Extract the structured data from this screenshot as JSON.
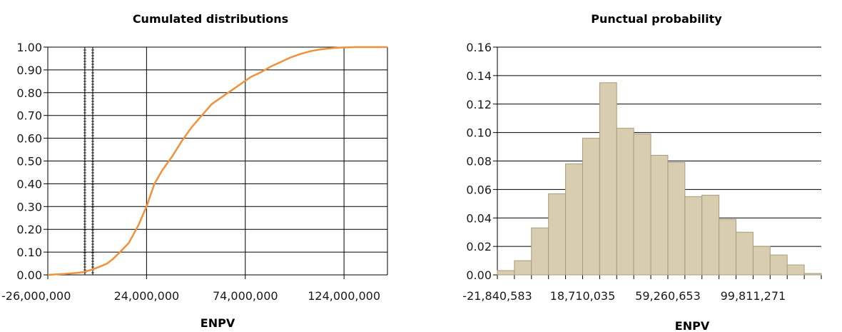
{
  "chart_data": [
    {
      "type": "line",
      "title": "Cumulated distributions",
      "xlabel": "ENPV",
      "ylabel": "",
      "xlim": [
        -26000000,
        146000000
      ],
      "ylim": [
        0,
        1
      ],
      "xticks": [
        -26000000,
        24000000,
        74000000,
        124000000
      ],
      "xtick_labels": [
        "-26,000,000",
        "24,000,000",
        "74,000,000",
        "124,000,000"
      ],
      "yticks": [
        0,
        0.1,
        0.2,
        0.3,
        0.4,
        0.5,
        0.6,
        0.7,
        0.8,
        0.9,
        1.0
      ],
      "ytick_labels": [
        "0.00",
        "0.10",
        "0.20",
        "0.30",
        "0.40",
        "0.50",
        "0.60",
        "0.70",
        "0.80",
        "0.90",
        "1.00"
      ],
      "grid": true,
      "color": "#f0913a",
      "series": [
        {
          "x": [
            -26000000,
            -16000000,
            -8000000,
            -3000000,
            0,
            4000000,
            7000000,
            10000000,
            15000000,
            20000000,
            24000000,
            28000000,
            32000000,
            37000000,
            42000000,
            47000000,
            52000000,
            57000000,
            62000000,
            67000000,
            72000000,
            77000000,
            82000000,
            87000000,
            92000000,
            97000000,
            102000000,
            107000000,
            112000000,
            117000000,
            122000000,
            130000000,
            138000000,
            146000000
          ],
          "y": [
            0.0,
            0.005,
            0.012,
            0.025,
            0.035,
            0.05,
            0.07,
            0.095,
            0.14,
            0.22,
            0.3,
            0.4,
            0.46,
            0.52,
            0.59,
            0.65,
            0.7,
            0.75,
            0.78,
            0.81,
            0.84,
            0.87,
            0.89,
            0.915,
            0.935,
            0.955,
            0.97,
            0.982,
            0.99,
            0.995,
            0.998,
            1.0,
            1.0,
            1.0
          ]
        }
      ]
    },
    {
      "type": "bar",
      "title": "Punctual probability",
      "xlabel": "ENPV",
      "ylabel": "",
      "ylim": [
        0,
        0.16
      ],
      "yticks": [
        0,
        0.02,
        0.04,
        0.06,
        0.08,
        0.1,
        0.12,
        0.14,
        0.16
      ],
      "ytick_labels": [
        "0.00",
        "0.02",
        "0.04",
        "0.06",
        "0.08",
        "0.10",
        "0.12",
        "0.14",
        "0.16"
      ],
      "xtick_labels": [
        "-21,840,583",
        "18,710,035",
        "59,260,653",
        "99,811,271"
      ],
      "grid": true,
      "color": "#d8ceaf",
      "values": [
        0.003,
        0.01,
        0.033,
        0.057,
        0.078,
        0.096,
        0.135,
        0.103,
        0.099,
        0.084,
        0.079,
        0.055,
        0.056,
        0.039,
        0.03,
        0.02,
        0.014,
        0.007,
        0.001
      ]
    }
  ]
}
